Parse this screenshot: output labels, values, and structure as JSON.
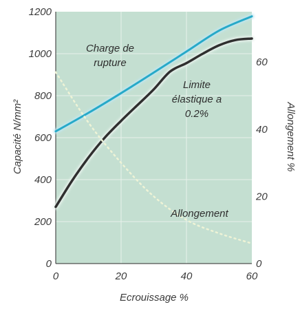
{
  "chart_data": {
    "type": "line",
    "title": "",
    "xlabel": "Ecrouissage %",
    "ylabel": "Capacité N/mm²",
    "y2label": "Allongement %",
    "xlim": [
      0,
      60
    ],
    "ylim": [
      0,
      1200
    ],
    "y2lim": [
      0,
      75
    ],
    "x_ticks": [
      0,
      20,
      40,
      60
    ],
    "y_ticks": [
      0,
      200,
      400,
      600,
      800,
      1000,
      1200
    ],
    "y2_ticks": [
      0,
      20,
      40,
      60
    ],
    "grid": true,
    "legend": "none",
    "colors": {
      "plot_background": "#c4dfd1",
      "grid": "#e8f2ec",
      "charge_de_rupture": "#27a9c8",
      "limite_elastique": "#2f2f2f",
      "allongement": "#eef3d6"
    },
    "series": [
      {
        "name": "Charge de rupture",
        "axis": "left",
        "x": [
          0,
          10,
          20,
          30,
          40,
          50,
          60
        ],
        "y": [
          630,
          718,
          812,
          910,
          1010,
          1110,
          1178
        ]
      },
      {
        "name": "Limite élastique a 0.2%",
        "axis": "left",
        "x": [
          0,
          5,
          10,
          15,
          20,
          25,
          30,
          35,
          40,
          45,
          50,
          55,
          60
        ],
        "y": [
          270,
          395,
          505,
          600,
          680,
          755,
          830,
          915,
          955,
          1000,
          1040,
          1065,
          1072
        ]
      },
      {
        "name": "Allongement",
        "axis": "right",
        "x": [
          0,
          10,
          20,
          30,
          40,
          50,
          60
        ],
        "y": [
          57,
          42,
          30,
          20,
          13,
          9,
          6
        ]
      }
    ],
    "annotations": [
      {
        "text": "Charge de"
      },
      {
        "text": "rupture"
      },
      {
        "text": "Limite"
      },
      {
        "text": "élastique a"
      },
      {
        "text": "0.2%"
      },
      {
        "text": "Allongement"
      }
    ]
  }
}
